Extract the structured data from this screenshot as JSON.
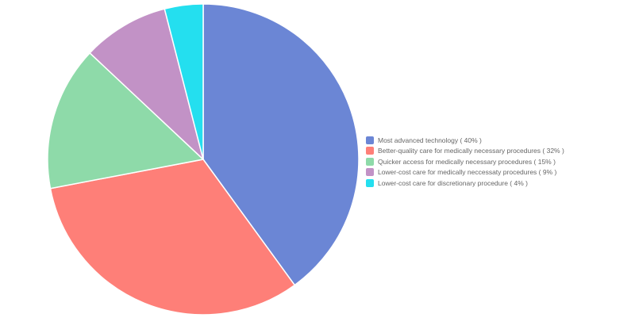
{
  "chart_data": {
    "type": "pie",
    "title": "",
    "slices": [
      {
        "label": "Most advanced technology",
        "value": 40,
        "percent_text": "( 40% )",
        "color": "#6b86d5"
      },
      {
        "label": "Better-quality care for medically necessary procedures",
        "value": 32,
        "percent_text": "( 32% )",
        "color": "#fe7f78"
      },
      {
        "label": "Quicker access for medically necessary procedures",
        "value": 15,
        "percent_text": "( 15% )",
        "color": "#8edaa9"
      },
      {
        "label": "Lower-cost care for medically neccessaty procedures",
        "value": 9,
        "percent_text": "( 9% )",
        "color": "#c292c6"
      },
      {
        "label": "Lower-cost care for discretionary procedure",
        "value": 4,
        "percent_text": "( 4% )",
        "color": "#24dfef"
      }
    ],
    "legend_position": "right"
  },
  "legend": {
    "entries": [
      "Most advanced technology ( 40% )",
      "Better-quality care for medically necessary procedures ( 32% )",
      "Quicker access for medically necessary procedures ( 15% )",
      "Lower-cost care for medically neccessaty procedures ( 9% )",
      "Lower-cost care for discretionary procedure ( 4% )"
    ]
  }
}
